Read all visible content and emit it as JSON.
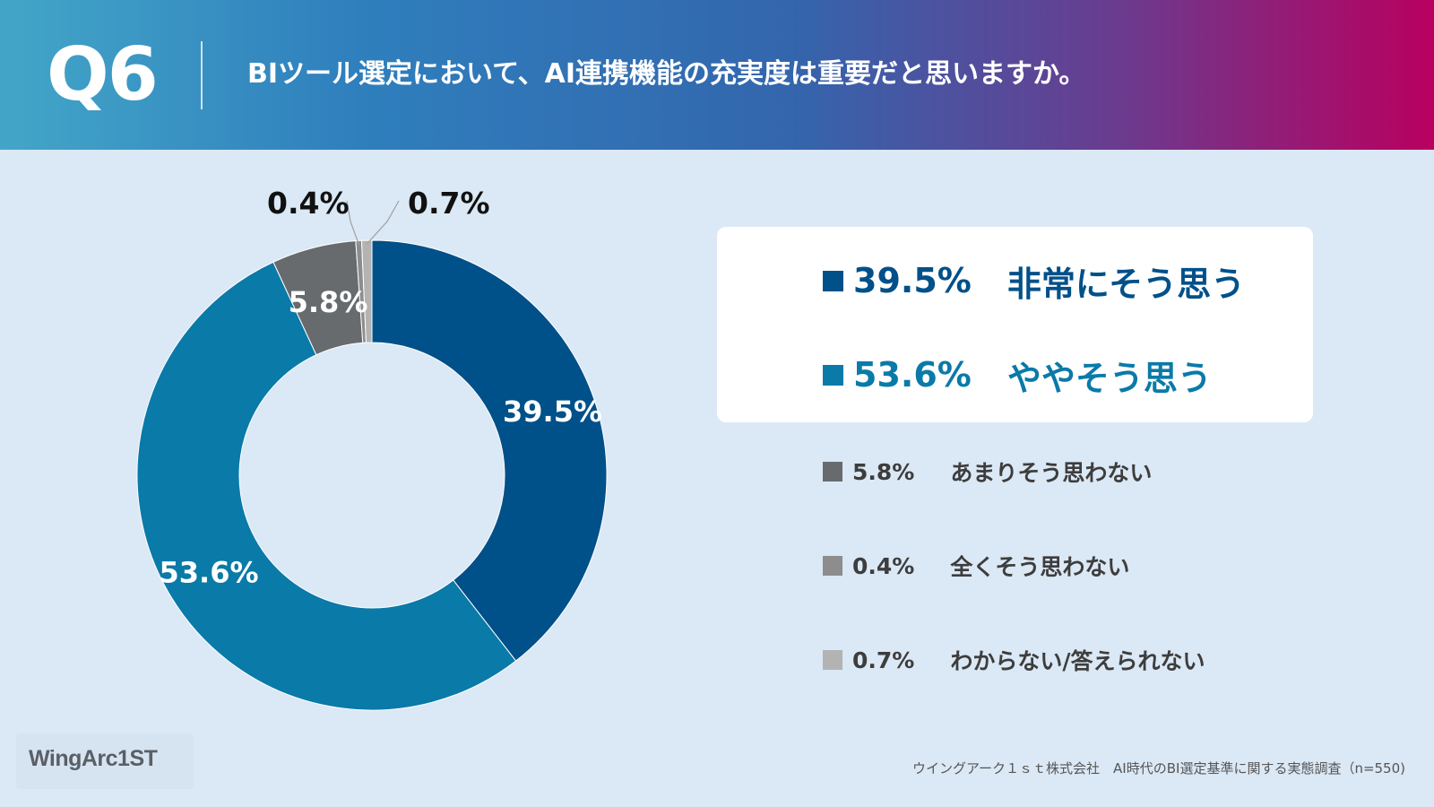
{
  "header": {
    "qnum": "Q6",
    "question": "BIツール選定において、AI連携機能の充実度は重要だと思いますか。"
  },
  "chart_data": {
    "type": "pie",
    "donut": true,
    "slices": [
      {
        "label": "非常にそう思う",
        "value": 39.5,
        "display": "39.5%",
        "color": "#005089"
      },
      {
        "label": "ややそう思う",
        "value": 53.6,
        "display": "53.6%",
        "color": "#0a7aa8"
      },
      {
        "label": "あまりそう思わない",
        "value": 5.8,
        "display": "5.8%",
        "color": "#676b6e"
      },
      {
        "label": "全くそう思わない",
        "value": 0.4,
        "display": "0.4%",
        "color": "#8d8d8d"
      },
      {
        "label": "わからない/答えられない",
        "value": 0.7,
        "display": "0.7%",
        "color": "#b3b3b3"
      }
    ]
  },
  "legend": {
    "items": [
      {
        "pct": "39.5%",
        "text": "非常にそう思う",
        "color": "#005089",
        "text_color": "#005089"
      },
      {
        "pct": "53.6%",
        "text": "ややそう思う",
        "color": "#0a7aa8",
        "text_color": "#0a7aa8"
      },
      {
        "pct": "5.8%",
        "text": "あまりそう思わない",
        "color": "#676b6e",
        "text_color": "#3d3d3d"
      },
      {
        "pct": "0.4%",
        "text": "全くそう思わない",
        "color": "#8d8d8d",
        "text_color": "#3d3d3d"
      },
      {
        "pct": "0.7%",
        "text": "わからない/答えられない",
        "color": "#b3b3b3",
        "text_color": "#3d3d3d"
      }
    ]
  },
  "footer": {
    "logo": "WingArc1ST",
    "note": "ウイングアーク１ｓｔ株式会社　AI時代のBI選定基準に関する実態調査（n=550)"
  }
}
